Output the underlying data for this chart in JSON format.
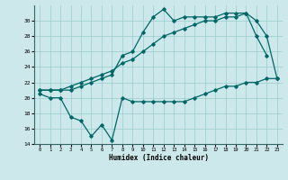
{
  "title": "",
  "xlabel": "Humidex (Indice chaleur)",
  "bg_color": "#cce8ea",
  "grid_color": "#99cccc",
  "line_color": "#006666",
  "x": [
    0,
    1,
    2,
    3,
    4,
    5,
    6,
    7,
    8,
    9,
    10,
    11,
    12,
    13,
    14,
    15,
    16,
    17,
    18,
    19,
    20,
    21,
    22,
    23
  ],
  "line1": [
    21.0,
    21.0,
    21.0,
    21.0,
    21.5,
    22.0,
    22.5,
    23.0,
    25.5,
    26.0,
    28.5,
    30.5,
    31.5,
    30.0,
    30.5,
    30.5,
    30.5,
    30.5,
    31.0,
    31.0,
    31.0,
    28.0,
    25.5,
    null
  ],
  "line2": [
    21.0,
    21.0,
    21.0,
    21.5,
    22.0,
    22.5,
    23.0,
    23.5,
    24.5,
    25.0,
    26.0,
    27.0,
    28.0,
    28.5,
    29.0,
    29.5,
    30.0,
    30.0,
    30.5,
    30.5,
    31.0,
    30.0,
    28.0,
    22.5
  ],
  "line3": [
    20.5,
    20.0,
    20.0,
    17.5,
    17.0,
    15.0,
    16.5,
    14.5,
    20.0,
    19.5,
    19.5,
    19.5,
    19.5,
    19.5,
    19.5,
    20.0,
    20.5,
    21.0,
    21.5,
    21.5,
    22.0,
    22.0,
    22.5,
    22.5
  ],
  "ylim": [
    14,
    32
  ],
  "yticks": [
    14,
    16,
    18,
    20,
    22,
    24,
    26,
    28,
    30
  ],
  "xlim": [
    -0.5,
    23.5
  ],
  "xticks": [
    0,
    1,
    2,
    3,
    4,
    5,
    6,
    7,
    8,
    9,
    10,
    11,
    12,
    13,
    14,
    15,
    16,
    17,
    18,
    19,
    20,
    21,
    22,
    23
  ]
}
